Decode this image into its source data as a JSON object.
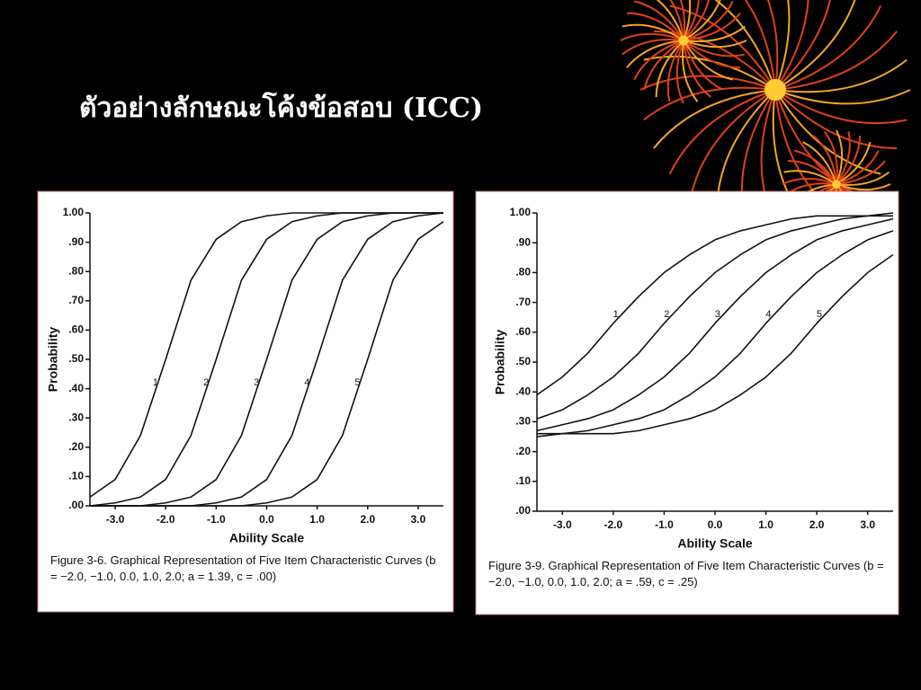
{
  "slide": {
    "title": "ตัวอย่างลักษณะโค้งข้อสอบ (ICC)"
  },
  "chart_data": [
    {
      "type": "line",
      "x_label": "Ability Scale",
      "y_label": "Probability",
      "caption": "Figure 3-6. Graphical Representation of Five Item Characteristic Curves (b = −2.0, −1.0, 0.0, 1.0, 2.0; a = 1.39, c = .00)",
      "x": [
        -3.5,
        -3,
        -2.5,
        -2,
        -1.5,
        -1,
        -0.5,
        0,
        0.5,
        1,
        1.5,
        2,
        2.5,
        3,
        3.5
      ],
      "series": [
        {
          "name": "1",
          "color": "#111111",
          "values": [
            0.03,
            0.09,
            0.24,
            0.5,
            0.77,
            0.91,
            0.97,
            0.99,
            1,
            1,
            1,
            1,
            1,
            1,
            1
          ]
        },
        {
          "name": "2",
          "color": "#111111",
          "values": [
            0,
            0.01,
            0.03,
            0.09,
            0.24,
            0.5,
            0.77,
            0.91,
            0.97,
            0.99,
            1,
            1,
            1,
            1,
            1
          ]
        },
        {
          "name": "3",
          "color": "#111111",
          "values": [
            0,
            0,
            0,
            0.01,
            0.03,
            0.09,
            0.24,
            0.5,
            0.77,
            0.91,
            0.97,
            0.99,
            1,
            1,
            1
          ]
        },
        {
          "name": "4",
          "color": "#111111",
          "values": [
            0,
            0,
            0,
            0,
            0,
            0.01,
            0.03,
            0.09,
            0.24,
            0.5,
            0.77,
            0.91,
            0.97,
            0.99,
            1
          ]
        },
        {
          "name": "5",
          "color": "#111111",
          "values": [
            0,
            0,
            0,
            0,
            0,
            0,
            0,
            0.01,
            0.03,
            0.09,
            0.24,
            0.5,
            0.77,
            0.91,
            0.97
          ]
        }
      ],
      "xlim": [
        -3.5,
        3.5
      ],
      "xticks": [
        {
          "value": -3,
          "label": "-3.0"
        },
        {
          "value": -2,
          "label": "-2.0"
        },
        {
          "value": -1,
          "label": "-1.0"
        },
        {
          "value": 0,
          "label": "0.0"
        },
        {
          "value": 1,
          "label": "1.0"
        },
        {
          "value": 2,
          "label": "2.0"
        },
        {
          "value": 3,
          "label": "3.0"
        }
      ],
      "ylim": [
        0,
        1
      ],
      "yticks": [
        {
          "value": 0,
          "label": ".00"
        },
        {
          "value": 0.1,
          "label": ".10"
        },
        {
          "value": 0.2,
          "label": ".20"
        },
        {
          "value": 0.3,
          "label": ".30"
        },
        {
          "value": 0.4,
          "label": ".40"
        },
        {
          "value": 0.5,
          "label": ".50"
        },
        {
          "value": 0.6,
          "label": ".60"
        },
        {
          "value": 0.7,
          "label": ".70"
        },
        {
          "value": 0.8,
          "label": ".80"
        },
        {
          "value": 0.9,
          "label": ".90"
        },
        {
          "value": 1,
          "label": "1.00"
        }
      ]
    },
    {
      "type": "line",
      "x_label": "Ability Scale",
      "y_label": "Probability",
      "caption": "Figure 3-9. Graphical Representation of Five Item Characteristic Curves (b = −2.0, −1.0, 0.0, 1.0, 2.0; a = .59, c = .25)",
      "x": [
        -3.5,
        -3,
        -2.5,
        -2,
        -1.5,
        -1,
        -0.5,
        0,
        0.5,
        1,
        1.5,
        2,
        2.5,
        3,
        3.5
      ],
      "series": [
        {
          "name": "1",
          "color": "#111111",
          "values": [
            0.39,
            0.45,
            0.53,
            0.63,
            0.72,
            0.8,
            0.86,
            0.91,
            0.94,
            0.96,
            0.98,
            0.99,
            0.99,
            0.99,
            1
          ]
        },
        {
          "name": "2",
          "color": "#111111",
          "values": [
            0.31,
            0.34,
            0.39,
            0.45,
            0.53,
            0.63,
            0.72,
            0.8,
            0.86,
            0.91,
            0.94,
            0.96,
            0.98,
            0.99,
            0.99
          ]
        },
        {
          "name": "3",
          "color": "#111111",
          "values": [
            0.27,
            0.29,
            0.31,
            0.34,
            0.39,
            0.45,
            0.53,
            0.63,
            0.72,
            0.8,
            0.86,
            0.91,
            0.94,
            0.96,
            0.98
          ]
        },
        {
          "name": "4",
          "color": "#111111",
          "values": [
            0.26,
            0.26,
            0.27,
            0.29,
            0.31,
            0.34,
            0.39,
            0.45,
            0.53,
            0.63,
            0.72,
            0.8,
            0.86,
            0.91,
            0.94
          ]
        },
        {
          "name": "5",
          "color": "#111111",
          "values": [
            0.25,
            0.26,
            0.26,
            0.26,
            0.27,
            0.29,
            0.31,
            0.34,
            0.39,
            0.45,
            0.53,
            0.63,
            0.72,
            0.8,
            0.86
          ]
        }
      ],
      "xlim": [
        -3.5,
        3.5
      ],
      "xticks": [
        {
          "value": -3,
          "label": "-3.0"
        },
        {
          "value": -2,
          "label": "-2.0"
        },
        {
          "value": -1,
          "label": "-1.0"
        },
        {
          "value": 0,
          "label": "0.0"
        },
        {
          "value": 1,
          "label": "1.0"
        },
        {
          "value": 2,
          "label": "2.0"
        },
        {
          "value": 3,
          "label": "3.0"
        }
      ],
      "ylim": [
        0,
        1
      ],
      "yticks": [
        {
          "value": 0,
          "label": ".00"
        },
        {
          "value": 0.1,
          "label": ".10"
        },
        {
          "value": 0.2,
          "label": ".20"
        },
        {
          "value": 0.3,
          "label": ".30"
        },
        {
          "value": 0.4,
          "label": ".40"
        },
        {
          "value": 0.5,
          "label": ".50"
        },
        {
          "value": 0.6,
          "label": ".60"
        },
        {
          "value": 0.7,
          "label": ".70"
        },
        {
          "value": 0.8,
          "label": ".80"
        },
        {
          "value": 0.9,
          "label": ".90"
        },
        {
          "value": 1,
          "label": "1.00"
        }
      ]
    }
  ]
}
